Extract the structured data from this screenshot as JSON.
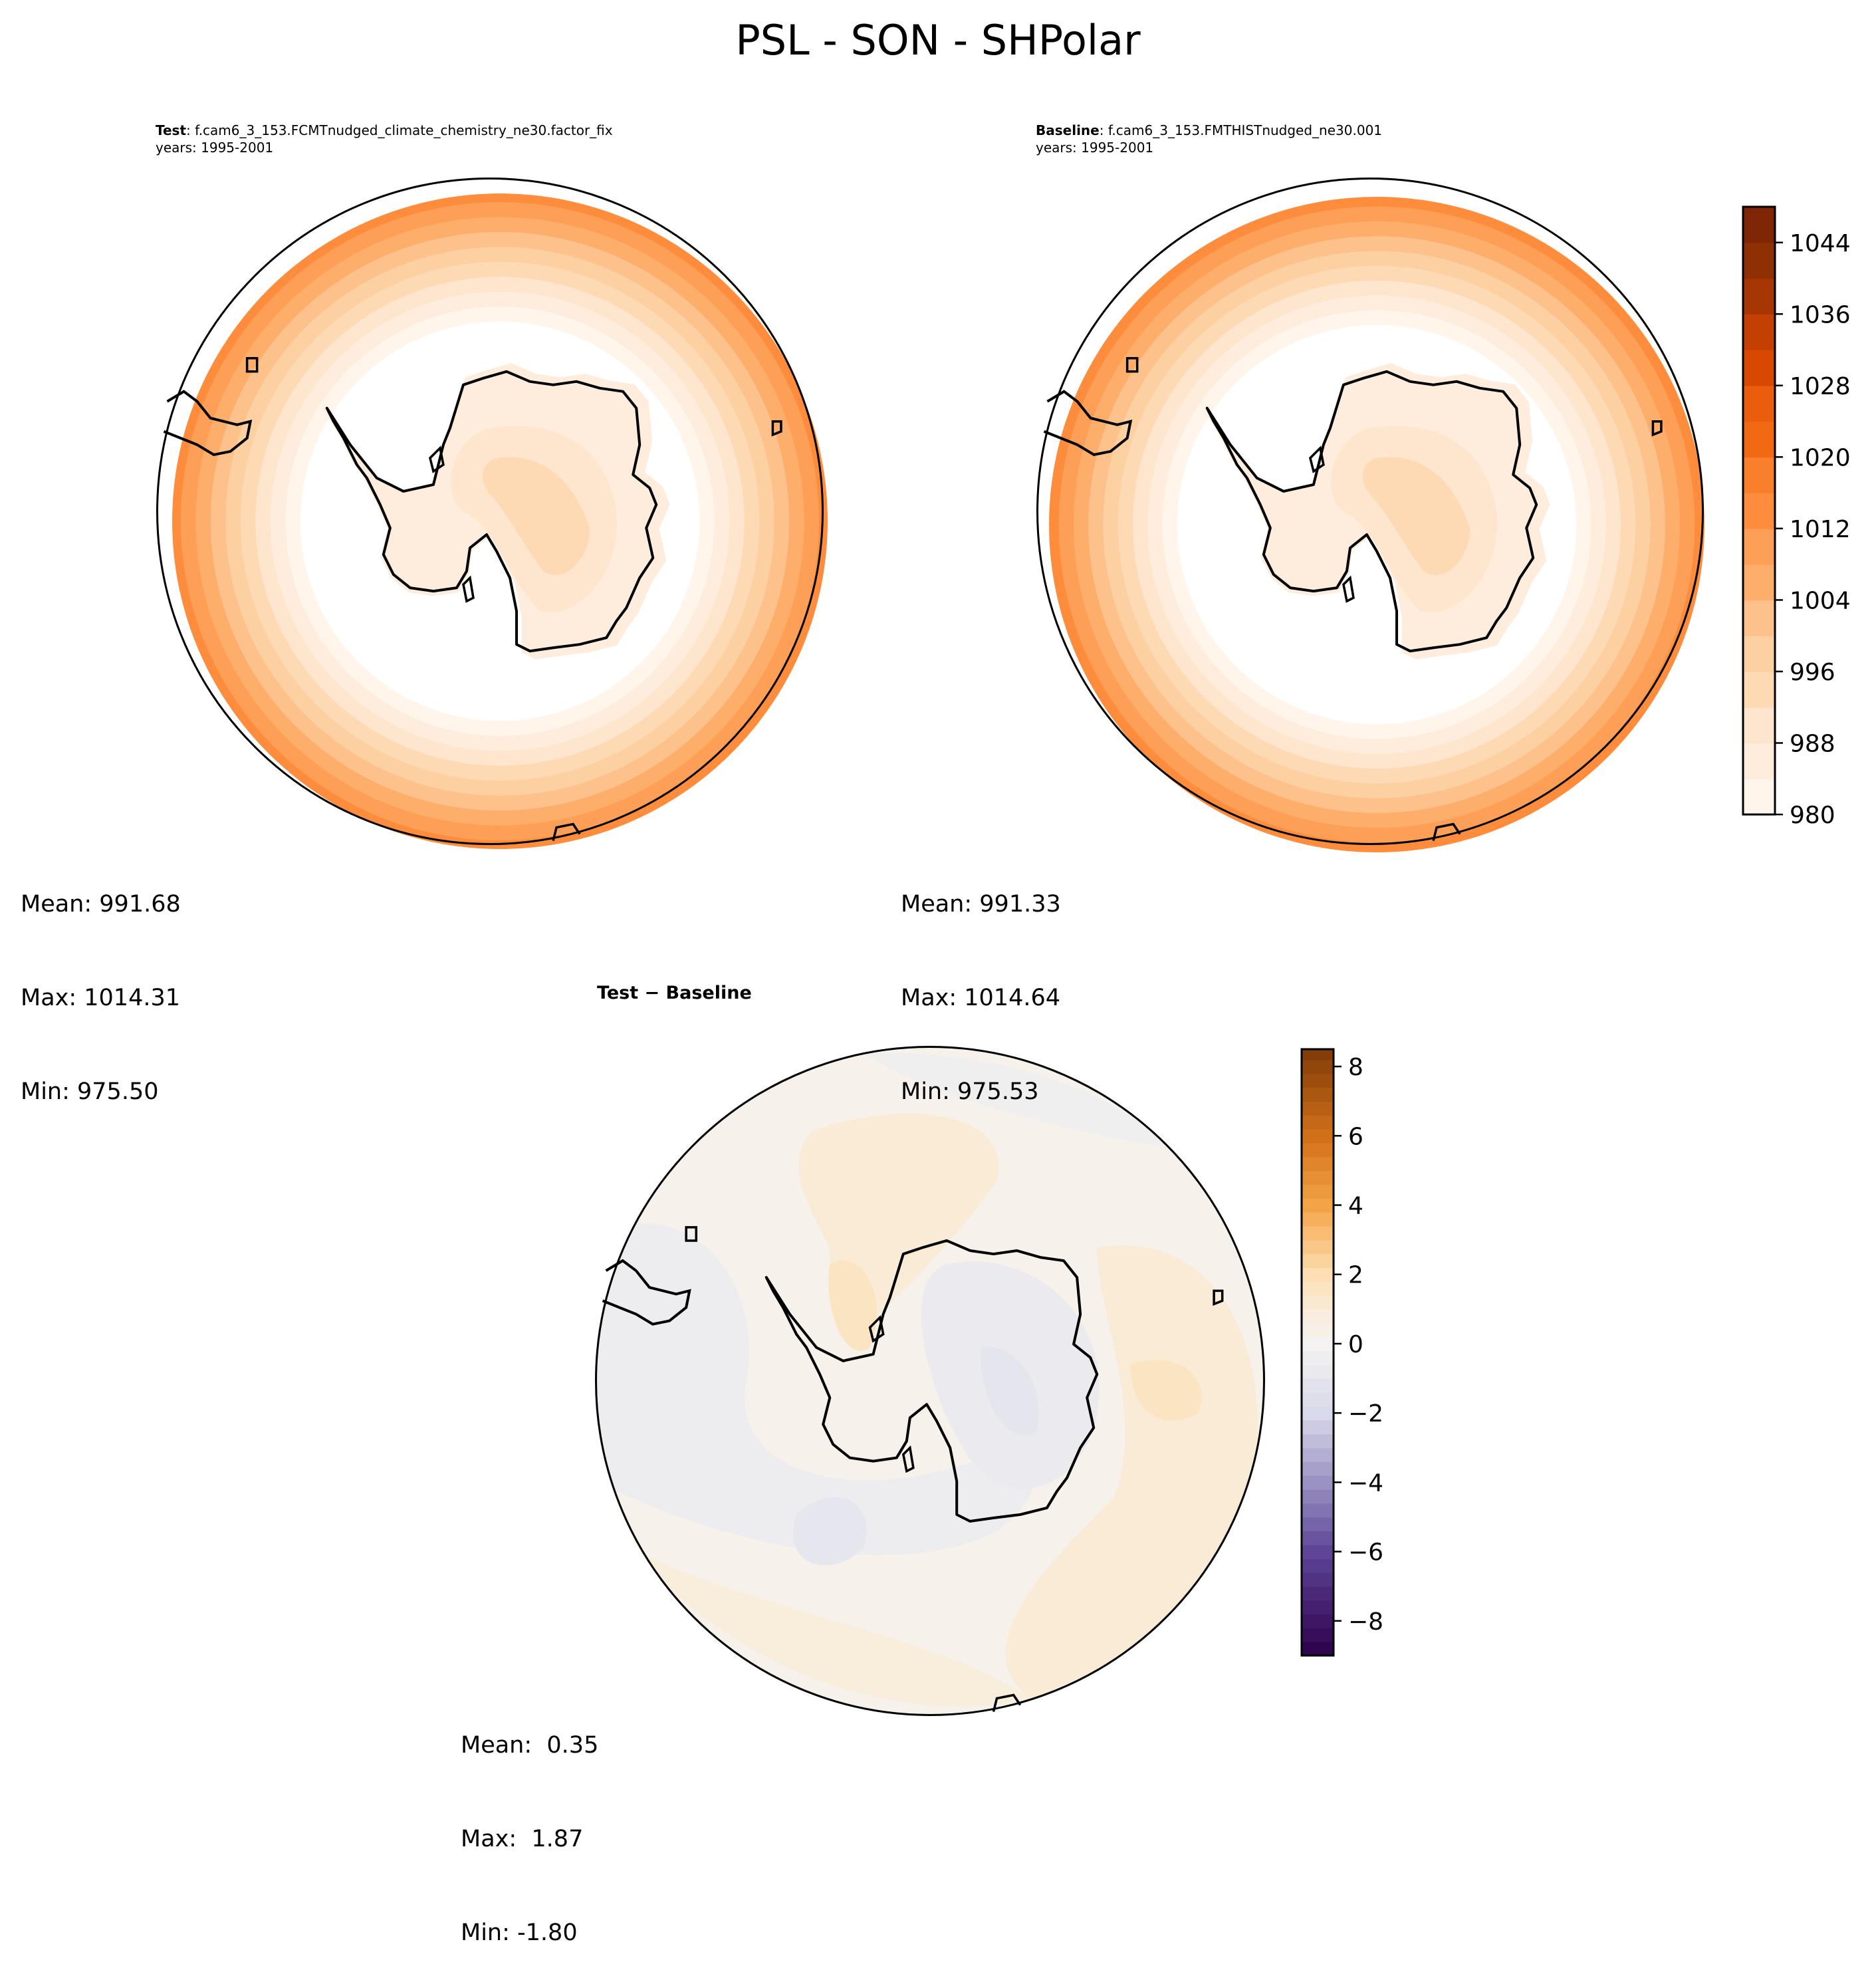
{
  "title": "PSL - SON - SHPolar",
  "panels": {
    "test": {
      "label": "Test",
      "case": ": f.cam6_3_153.FCMTnudged_climate_chemistry_ne30.factor_fix",
      "years": "years: 1995-2001",
      "mean": "Mean: 991.68",
      "max": "Max: 1014.31",
      "min": "Min: 975.50"
    },
    "baseline": {
      "label": "Baseline",
      "case": ": f.cam6_3_153.FMTHISTnudged_ne30.001",
      "years": "years: 1995-2001",
      "mean": "Mean: 991.33",
      "max": "Max: 1014.64",
      "min": "Min: 975.53"
    },
    "diff": {
      "title": "Test − Baseline",
      "mean": "Mean:  0.35",
      "max": "Max:  1.87",
      "min": "Min: -1.80"
    }
  },
  "chart_data": [
    {
      "type": "heatmap",
      "name": "Test PSL",
      "projection": "South Polar Stereographic",
      "colorbar": {
        "range": [
          980,
          1048
        ],
        "step": 4,
        "ticks": [
          980,
          988,
          996,
          1004,
          1012,
          1020,
          1028,
          1036,
          1044
        ],
        "colors": [
          "#fff5eb",
          "#feeddc",
          "#fee6ce",
          "#fdd9b4",
          "#fdd0a2",
          "#fdc28c",
          "#fdae6b",
          "#fd9f56",
          "#fd8d3c",
          "#f87f2c",
          "#f16913",
          "#e95d0d",
          "#d94801",
          "#c44002",
          "#a63603",
          "#8f3004",
          "#7f2704"
        ]
      },
      "field": {
        "inner": 975.5,
        "outer": 1014.31,
        "mean": 991.68
      }
    },
    {
      "type": "heatmap",
      "name": "Baseline PSL",
      "projection": "South Polar Stereographic",
      "field": {
        "inner": 975.53,
        "outer": 1014.64,
        "mean": 991.33
      }
    },
    {
      "type": "heatmap",
      "name": "Test - Baseline",
      "projection": "South Polar Stereographic",
      "colorbar": {
        "range": [
          -9,
          8.5
        ],
        "step": 0.4,
        "ticks": [
          -8,
          -6,
          -4,
          -2,
          0,
          2,
          4,
          6,
          8
        ],
        "tick_labels": [
          "−8",
          "−6",
          "−4",
          "−2",
          "0",
          "2",
          "4",
          "6",
          "8"
        ],
        "anchors": [
          [
            -9,
            "#2d004b"
          ],
          [
            -6,
            "#5e4597"
          ],
          [
            -4,
            "#9a92c2"
          ],
          [
            -2,
            "#d8d9ea"
          ],
          [
            0,
            "#f4f3f1"
          ],
          [
            1,
            "#f9ecd9"
          ],
          [
            2,
            "#fddfb3"
          ],
          [
            4,
            "#f4a447"
          ],
          [
            6,
            "#d2701a"
          ],
          [
            8.5,
            "#7f3b08"
          ]
        ]
      },
      "field": {
        "mean": 0.35,
        "max": 1.87,
        "min": -1.8
      }
    }
  ]
}
